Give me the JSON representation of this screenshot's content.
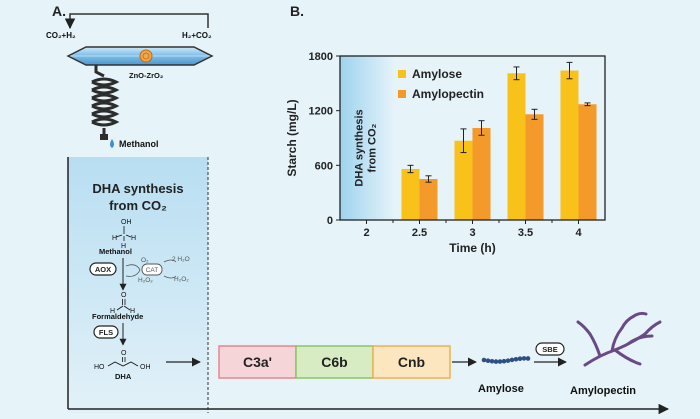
{
  "panel_a": {
    "label": "A.",
    "gas_left": "CO₂+H₂",
    "gas_right": "H₂+CO₂",
    "catalyst": "ZnO-ZrO₂",
    "product": "Methanol",
    "box_title_line1": "DHA synthesis",
    "box_title_line2": "from CO₂",
    "methanol": "Methanol",
    "aox": "AOX",
    "cat": "CAT",
    "o2": "O₂",
    "h2o2_a": "H₂O₂",
    "h2o2_b": "H₂O₂",
    "two_h2o": "2 H₂O",
    "formaldehyde": "Formaldehyde",
    "fls": "FLS",
    "dha": "DHA"
  },
  "pathway": {
    "enzymes": [
      "C3a'",
      "C6b",
      "Cnb"
    ],
    "enzyme_colors": [
      "#f6d5d8",
      "#d8ecc4",
      "#fbe6c0"
    ],
    "enzyme_borders": [
      "#e4888f",
      "#8cc46a",
      "#f0b050"
    ],
    "amylose": "Amylose",
    "sbe": "SBE",
    "amylopectin": "Amylopectin"
  },
  "panel_b": {
    "label": "B."
  },
  "chart_data": {
    "type": "bar",
    "categories": [
      "2",
      "2.5",
      "3",
      "3.5",
      "4"
    ],
    "xlabel": "Time (h)",
    "ylabel": "Starch (mg/L)",
    "ylim": [
      0,
      1800
    ],
    "yticks": [
      0,
      600,
      1200,
      1800
    ],
    "stage_label_line1": "DHA synthesis",
    "stage_label_line2": "from CO₂",
    "legend_position": "top-left",
    "series": [
      {
        "name": "Amylose",
        "color": "#f9c21a",
        "values": [
          null,
          560,
          870,
          1610,
          1640
        ],
        "errors": [
          null,
          40,
          130,
          70,
          90
        ]
      },
      {
        "name": "Amylopectin",
        "color": "#f39a2a",
        "values": [
          null,
          450,
          1010,
          1160,
          1270
        ],
        "errors": [
          null,
          35,
          80,
          55,
          15
        ]
      }
    ]
  }
}
